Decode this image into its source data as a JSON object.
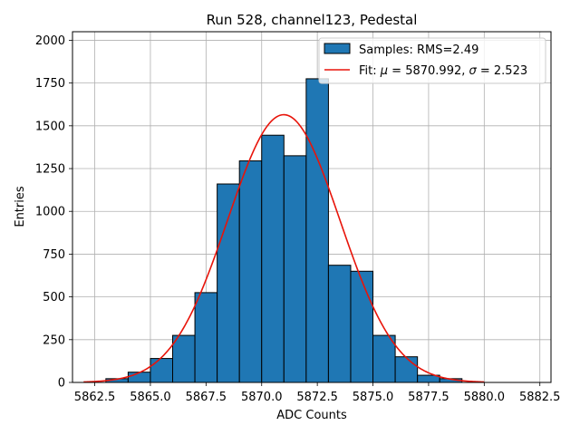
{
  "chart_data": {
    "type": "bar",
    "title": "Run 528, channel123, Pedestal",
    "xlabel": "ADC Counts",
    "ylabel": "Entries",
    "xlim": [
      5861.5,
      5883.0
    ],
    "ylim": [
      0,
      2050
    ],
    "grid": true,
    "xticks": [
      5862.5,
      5865.0,
      5867.5,
      5870.0,
      5872.5,
      5875.0,
      5877.5,
      5880.0,
      5882.5
    ],
    "xtick_labels": [
      "5862.5",
      "5865.0",
      "5867.5",
      "5870.0",
      "5872.5",
      "5875.0",
      "5877.5",
      "5880.0",
      "5882.5"
    ],
    "yticks": [
      0,
      250,
      500,
      750,
      1000,
      1250,
      1500,
      1750,
      2000
    ],
    "ytick_labels": [
      "0",
      "250",
      "500",
      "750",
      "1000",
      "1250",
      "1500",
      "1750",
      "2000"
    ],
    "histogram": {
      "name": "Samples: RMS=2.49",
      "color": "#1f77b4",
      "edge_color": "#000000",
      "bin_edges": [
        5862.0,
        5863.0,
        5864.0,
        5865.0,
        5866.0,
        5867.0,
        5868.0,
        5869.0,
        5870.0,
        5871.0,
        5872.0,
        5873.0,
        5874.0,
        5875.0,
        5876.0,
        5877.0,
        5878.0,
        5879.0,
        5880.0,
        5881.0,
        5882.0
      ],
      "counts": [
        0,
        22,
        60,
        140,
        275,
        525,
        1160,
        1295,
        1445,
        1325,
        1775,
        685,
        650,
        275,
        150,
        42,
        22,
        0,
        0,
        0
      ]
    },
    "fit": {
      "name": "Fit: μ = 5870.992, σ = 2.523",
      "color": "#e8140a",
      "mu": 5870.992,
      "sigma": 2.523,
      "amplitude": 1565,
      "x_range": [
        5862.0,
        5880.0
      ]
    },
    "legend": {
      "placement": "top-right",
      "entries": [
        {
          "label_prefix": "Samples: RMS=2.49",
          "kind": "patch"
        },
        {
          "label_prefix": "Fit: ",
          "mu_symbol": "μ",
          "mu_text": " = 5870.992, ",
          "sigma_symbol": "σ",
          "sigma_text": " = 2.523",
          "kind": "line"
        }
      ]
    }
  }
}
